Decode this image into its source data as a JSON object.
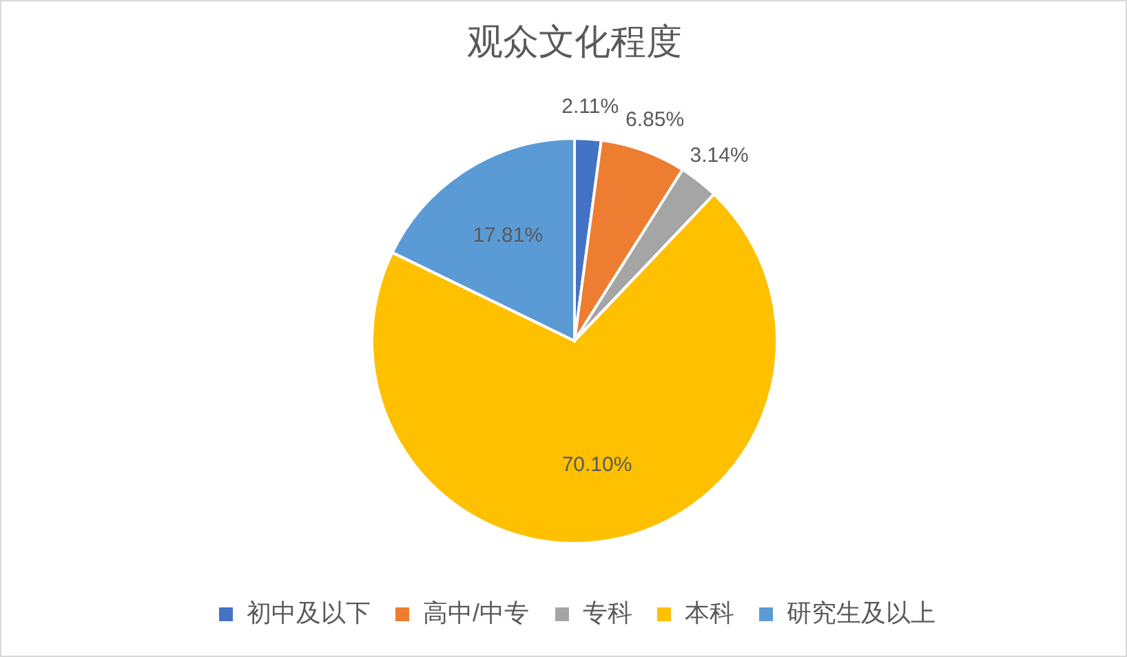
{
  "chart_data": {
    "type": "pie",
    "title": "观众文化程度",
    "categories": [
      "初中及以下",
      "高中/中专",
      "专科",
      "本科",
      "研究生及以上"
    ],
    "values": [
      2.11,
      6.85,
      3.14,
      70.1,
      17.81
    ],
    "value_labels": [
      "2.11%",
      "6.85%",
      "3.14%",
      "70.10%",
      "17.81%"
    ],
    "colors": [
      "#4472c4",
      "#ed7d31",
      "#a5a5a5",
      "#ffc000",
      "#5b9bd5"
    ],
    "legend": "bottom"
  }
}
